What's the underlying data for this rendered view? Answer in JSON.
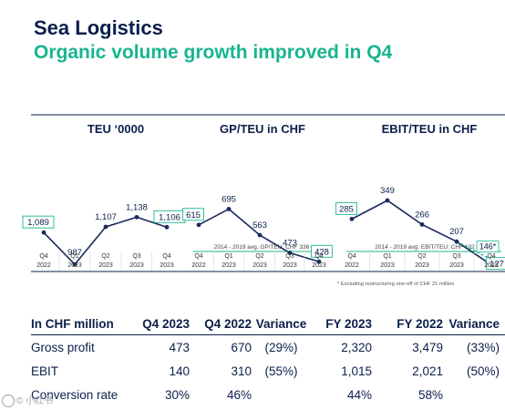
{
  "header": {
    "title": "Sea Logistics",
    "subtitle": "Organic volume growth improved in Q4"
  },
  "colors": {
    "navy": "#0b1f4b",
    "teal": "#18b58f",
    "grey_text": "#555555",
    "line": "#1a2a5e"
  },
  "categories": [
    [
      "Q4",
      "2022"
    ],
    [
      "Q1",
      "2023"
    ],
    [
      "Q2",
      "2023"
    ],
    [
      "Q3",
      "2023"
    ],
    [
      "Q4",
      "2023"
    ]
  ],
  "chart_data": [
    {
      "type": "line",
      "title": "TEU ‘0000",
      "categories": [
        "Q4 2022",
        "Q1 2023",
        "Q2 2023",
        "Q3 2023",
        "Q4 2023"
      ],
      "values": [
        1089,
        987,
        1107,
        1138,
        1106
      ],
      "labels": [
        "1,089",
        "987",
        "1,107",
        "1,138",
        "1,106"
      ],
      "boxed": [
        0,
        4
      ],
      "ylim": [
        900,
        1260
      ]
    },
    {
      "type": "line",
      "title": "GP/TEU in CHF",
      "categories": [
        "Q4 2022",
        "Q1 2023",
        "Q2 2023",
        "Q3 2023",
        "Q4 2023"
      ],
      "values": [
        615,
        695,
        563,
        473,
        428
      ],
      "labels": [
        "615",
        "695",
        "563",
        "473",
        "428"
      ],
      "boxed": [
        0,
        4
      ],
      "ylim": [
        300,
        800
      ],
      "reference": {
        "value": 336,
        "label": "2014 - 2019 avg. GP/TEU: CHF 336"
      }
    },
    {
      "type": "line",
      "title": "EBIT/TEU in CHF",
      "categories": [
        "Q4 2022",
        "Q1 2023",
        "Q2 2023",
        "Q3 2023",
        "Q4 2023"
      ],
      "values": [
        285,
        349,
        266,
        207,
        127
      ],
      "labels": [
        "285",
        "349",
        "266",
        "207",
        "127"
      ],
      "boxed": [
        0,
        4
      ],
      "ylim": [
        60,
        430
      ],
      "reference": {
        "value": 102,
        "label": "2014 - 2019 avg. EBIT/TEU: CHF 102"
      },
      "adjusted_point": {
        "value": 146,
        "label": "146*"
      },
      "footnote": "* Excluding restructuring one-off of CHF 21 million"
    }
  ],
  "table": {
    "headers": [
      "In CHF million",
      "Q4 2023",
      "Q4 2022",
      "Variance",
      "FY 2023",
      "FY 2022",
      "Variance"
    ],
    "rows": [
      [
        "Gross profit",
        "473",
        "670",
        "(29%)",
        "2,320",
        "3,479",
        "(33%)"
      ],
      [
        "EBIT",
        "140",
        "310",
        "(55%)",
        "1,015",
        "2,021",
        "(50%)"
      ],
      [
        "Conversion rate",
        "30%",
        "46%",
        "",
        "44%",
        "58%",
        ""
      ]
    ]
  },
  "watermark": "© 小红书"
}
